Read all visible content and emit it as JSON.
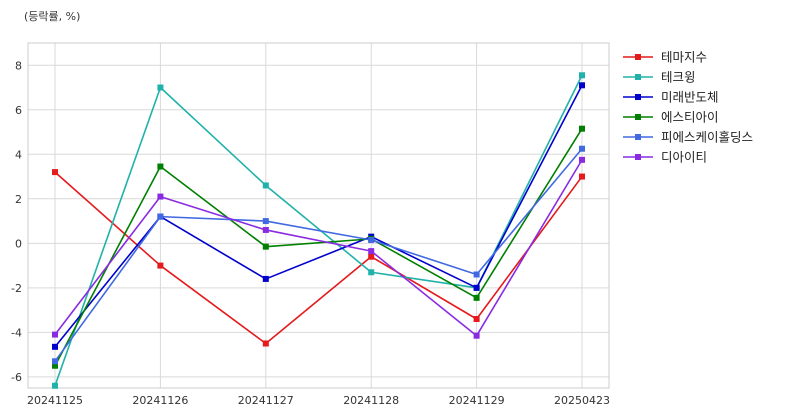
{
  "chart_data": {
    "type": "line",
    "unit_label": "(등락률, %)",
    "categories": [
      "20241125",
      "20241126",
      "20241127",
      "20241128",
      "20241129",
      "20250423"
    ],
    "ylim": [
      -6.5,
      9.0
    ],
    "yticks": [
      -6,
      -4,
      -2,
      0,
      2,
      4,
      6,
      8
    ],
    "grid": true,
    "legend_position": "right",
    "series": [
      {
        "name": "테마지수",
        "color": "#e41a1c",
        "values": [
          3.2,
          -1.0,
          -4.5,
          -0.6,
          -3.4,
          3.0
        ]
      },
      {
        "name": "테크윙",
        "color": "#20b2aa",
        "values": [
          -6.4,
          7.0,
          2.6,
          -1.3,
          -2.0,
          7.55
        ]
      },
      {
        "name": "미래반도체",
        "color": "#0000cd",
        "values": [
          -4.65,
          1.2,
          -1.6,
          0.3,
          -2.0,
          7.1
        ]
      },
      {
        "name": "에스티아이",
        "color": "#008000",
        "values": [
          -5.5,
          3.45,
          -0.15,
          0.2,
          -2.45,
          5.15
        ]
      },
      {
        "name": "피에스케이홀딩스",
        "color": "#4169e1",
        "values": [
          -5.3,
          1.2,
          1.0,
          0.15,
          -1.4,
          4.25
        ]
      },
      {
        "name": "디아이티",
        "color": "#8a2be2",
        "values": [
          -4.1,
          2.1,
          0.6,
          -0.35,
          -4.15,
          3.75
        ]
      }
    ]
  }
}
